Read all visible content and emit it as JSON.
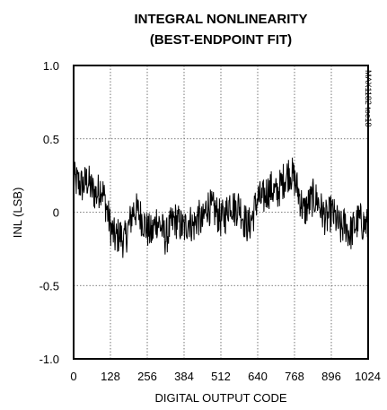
{
  "chart_data": {
    "type": "line",
    "title_line1": "INTEGRAL NONLINEARITY",
    "title_line2": "(BEST-ENDPOINT FIT)",
    "xlabel": "DIGITAL OUTPUT CODE",
    "ylabel": "INL (LSB)",
    "side_label": "MAX1182 toc18",
    "xlim": [
      0,
      1024
    ],
    "ylim": [
      -1.0,
      1.0
    ],
    "x_ticks": [
      0,
      128,
      256,
      384,
      512,
      640,
      768,
      896,
      1024
    ],
    "y_ticks": [
      1.0,
      0.5,
      0,
      -0.5,
      -1.0
    ],
    "x_tick_labels": [
      "0",
      "128",
      "256",
      "384",
      "512",
      "640",
      "768",
      "896",
      "1024"
    ],
    "y_tick_labels": [
      "1.0",
      "0.5",
      "0",
      "-0.5",
      "-1.0"
    ],
    "grid": "dotted",
    "line_color": "#000000",
    "series": [
      {
        "values_x": [
          0,
          16,
          32,
          48,
          64,
          80,
          96,
          112,
          128,
          144,
          160,
          176,
          192,
          208,
          224,
          240,
          256,
          272,
          288,
          304,
          320,
          336,
          352,
          368,
          384,
          400,
          416,
          432,
          448,
          464,
          480,
          496,
          512,
          528,
          544,
          560,
          576,
          592,
          608,
          624,
          640,
          656,
          672,
          688,
          704,
          720,
          736,
          752,
          768,
          784,
          800,
          816,
          832,
          848,
          864,
          880,
          896,
          912,
          928,
          944,
          960,
          976,
          992,
          1008,
          1024
        ],
        "values_y": [
          0.22,
          0.2,
          0.18,
          0.22,
          0.15,
          0.12,
          0.18,
          0.05,
          -0.1,
          -0.18,
          -0.15,
          -0.2,
          -0.1,
          0.02,
          0.0,
          -0.05,
          -0.12,
          -0.15,
          -0.05,
          -0.1,
          -0.18,
          -0.1,
          -0.05,
          -0.08,
          -0.12,
          -0.05,
          -0.1,
          -0.03,
          -0.08,
          0.05,
          0.02,
          0.0,
          -0.05,
          -0.02,
          0.08,
          0.02,
          0.05,
          -0.05,
          -0.1,
          -0.02,
          0.1,
          0.08,
          0.14,
          0.16,
          0.12,
          0.18,
          0.24,
          0.28,
          0.22,
          0.12,
          0.0,
          0.05,
          0.1,
          0.08,
          0.0,
          -0.05,
          0.0,
          -0.05,
          -0.12,
          -0.08,
          -0.15,
          -0.1,
          -0.05,
          -0.08,
          -0.1
        ]
      }
    ]
  }
}
